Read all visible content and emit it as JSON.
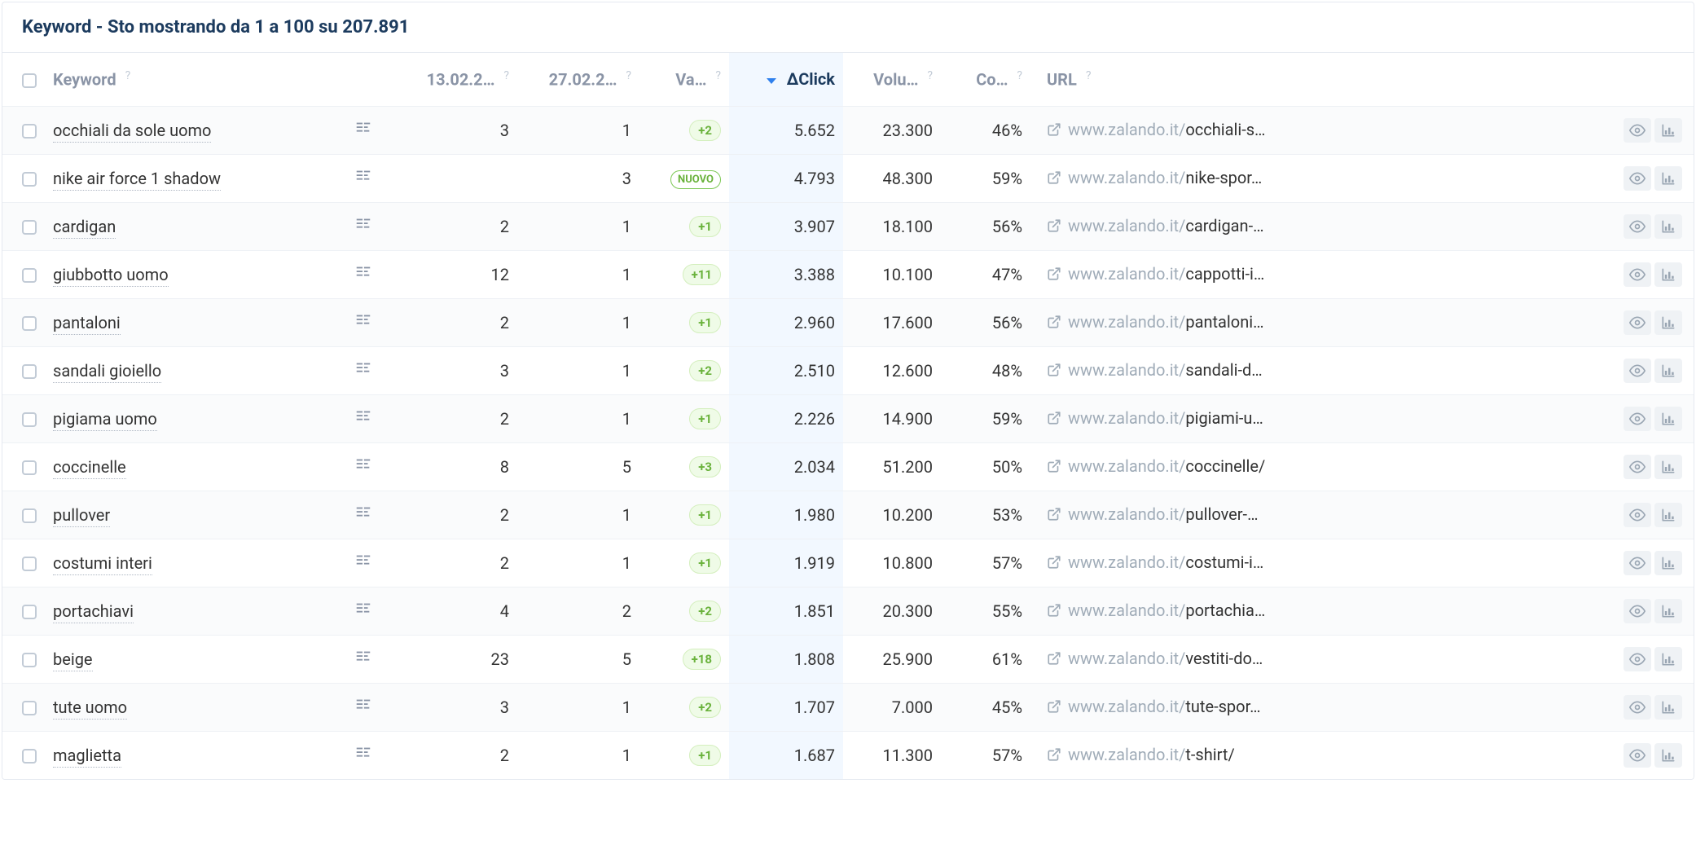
{
  "title": "Keyword - Sto mostrando da 1 a 100 su 207.891",
  "columns": {
    "keyword": "Keyword",
    "date1": "13.02.2…",
    "date2": "27.02.2…",
    "variation": "Va…",
    "click": "ΔClick",
    "volume": "Volu…",
    "competition": "Co…",
    "url": "URL"
  },
  "rows": [
    {
      "keyword": "occhiali da sole uomo",
      "d1": "3",
      "d2": "1",
      "var": "+2",
      "var_type": "pos",
      "click": "5.652",
      "vol": "23.300",
      "comp": "46%",
      "url_domain": "www.zalando.it/",
      "url_path": "occhiali-s…"
    },
    {
      "keyword": "nike air force 1 shadow",
      "d1": "",
      "d2": "3",
      "var": "NUOVO",
      "var_type": "new",
      "click": "4.793",
      "vol": "48.300",
      "comp": "59%",
      "url_domain": "www.zalando.it/",
      "url_path": "nike-spor…"
    },
    {
      "keyword": "cardigan",
      "d1": "2",
      "d2": "1",
      "var": "+1",
      "var_type": "pos",
      "click": "3.907",
      "vol": "18.100",
      "comp": "56%",
      "url_domain": "www.zalando.it/",
      "url_path": "cardigan-…"
    },
    {
      "keyword": "giubbotto uomo",
      "d1": "12",
      "d2": "1",
      "var": "+11",
      "var_type": "pos",
      "click": "3.388",
      "vol": "10.100",
      "comp": "47%",
      "url_domain": "www.zalando.it/",
      "url_path": "cappotti-i…"
    },
    {
      "keyword": "pantaloni",
      "d1": "2",
      "d2": "1",
      "var": "+1",
      "var_type": "pos",
      "click": "2.960",
      "vol": "17.600",
      "comp": "56%",
      "url_domain": "www.zalando.it/",
      "url_path": "pantaloni…"
    },
    {
      "keyword": "sandali gioiello",
      "d1": "3",
      "d2": "1",
      "var": "+2",
      "var_type": "pos",
      "click": "2.510",
      "vol": "12.600",
      "comp": "48%",
      "url_domain": "www.zalando.it/",
      "url_path": "sandali-d…"
    },
    {
      "keyword": "pigiama uomo",
      "d1": "2",
      "d2": "1",
      "var": "+1",
      "var_type": "pos",
      "click": "2.226",
      "vol": "14.900",
      "comp": "59%",
      "url_domain": "www.zalando.it/",
      "url_path": "pigiami-u…"
    },
    {
      "keyword": "coccinelle",
      "d1": "8",
      "d2": "5",
      "var": "+3",
      "var_type": "pos",
      "click": "2.034",
      "vol": "51.200",
      "comp": "50%",
      "url_domain": "www.zalando.it/",
      "url_path": "coccinelle/"
    },
    {
      "keyword": "pullover",
      "d1": "2",
      "d2": "1",
      "var": "+1",
      "var_type": "pos",
      "click": "1.980",
      "vol": "10.200",
      "comp": "53%",
      "url_domain": "www.zalando.it/",
      "url_path": "pullover-…"
    },
    {
      "keyword": "costumi interi",
      "d1": "2",
      "d2": "1",
      "var": "+1",
      "var_type": "pos",
      "click": "1.919",
      "vol": "10.800",
      "comp": "57%",
      "url_domain": "www.zalando.it/",
      "url_path": "costumi-i…"
    },
    {
      "keyword": "portachiavi",
      "d1": "4",
      "d2": "2",
      "var": "+2",
      "var_type": "pos",
      "click": "1.851",
      "vol": "20.300",
      "comp": "55%",
      "url_domain": "www.zalando.it/",
      "url_path": "portachia…"
    },
    {
      "keyword": "beige",
      "d1": "23",
      "d2": "5",
      "var": "+18",
      "var_type": "pos",
      "click": "1.808",
      "vol": "25.900",
      "comp": "61%",
      "url_domain": "www.zalando.it/",
      "url_path": "vestiti-do…"
    },
    {
      "keyword": "tute uomo",
      "d1": "3",
      "d2": "1",
      "var": "+2",
      "var_type": "pos",
      "click": "1.707",
      "vol": "7.000",
      "comp": "45%",
      "url_domain": "www.zalando.it/",
      "url_path": "tute-spor…"
    },
    {
      "keyword": "maglietta",
      "d1": "2",
      "d2": "1",
      "var": "+1",
      "var_type": "pos",
      "click": "1.687",
      "vol": "11.300",
      "comp": "57%",
      "url_domain": "www.zalando.it/",
      "url_path": "t-shirt/"
    }
  ],
  "help_marker": "?",
  "colors": {
    "title": "#1c3b5e",
    "header_text": "#8a94a6",
    "sorted_bg": "#f2f8ff",
    "badge_green_bg": "#effbe7",
    "badge_green_border": "#d4efbe",
    "badge_green_text": "#6ab23c"
  }
}
